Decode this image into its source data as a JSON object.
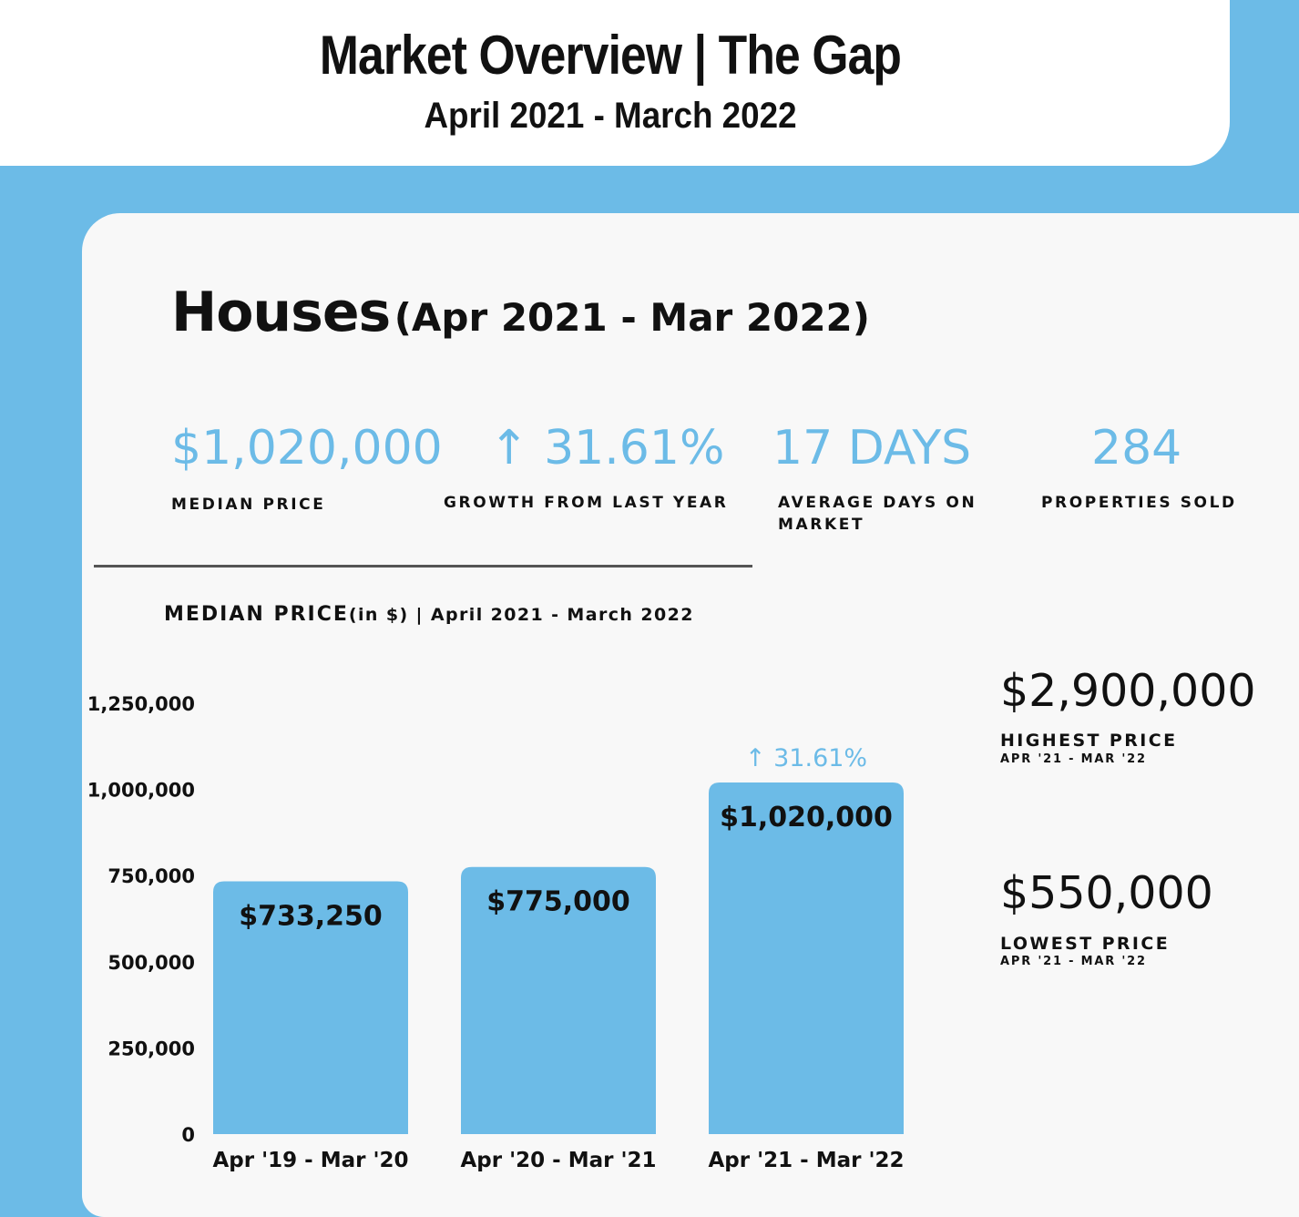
{
  "header": {
    "title": "Market Overview | The Gap",
    "subtitle": "April 2021 - March 2022"
  },
  "section": {
    "title": "Houses",
    "range": "(Apr 2021 - Mar 2022)"
  },
  "stats": [
    {
      "value": "$1,020,000",
      "label": "MEDIAN PRICE"
    },
    {
      "value": "↑ 31.61%",
      "label": "GROWTH FROM LAST YEAR"
    },
    {
      "value": "17 DAYS",
      "label": "AVERAGE DAYS ON MARKET"
    },
    {
      "value": "284",
      "label": "PROPERTIES SOLD"
    }
  ],
  "chart_title": {
    "main": "MEDIAN PRICE",
    "unit": "(in $)",
    "range": " | April 2021 - March 2022"
  },
  "side": {
    "highest_value": "$2,900,000",
    "highest_label": "HIGHEST PRICE",
    "highest_sub": "APR '21 - MAR '22",
    "lowest_value": "$550,000",
    "lowest_label": "LOWEST PRICE",
    "lowest_sub": "APR '21 - MAR '22"
  },
  "colors": {
    "accent": "#6cbbe7",
    "bar": "#6cbbe7",
    "text": "#111111",
    "panel": "#f8f8f8"
  },
  "chart_data": {
    "type": "bar",
    "title": "MEDIAN PRICE (in $) | April 2021 - March 2022",
    "xlabel": "",
    "ylabel": "",
    "categories": [
      "Apr '19 - Mar '20",
      "Apr '20 - Mar '21",
      "Apr '21 - Mar '22"
    ],
    "values": [
      733250,
      775000,
      1020000
    ],
    "value_labels": [
      "$733,250",
      "$775,000",
      "$1,020,000"
    ],
    "annotations": [
      {
        "category": "Apr '21 - Mar '22",
        "text": "↑ 31.61%"
      }
    ],
    "yticks": [
      0,
      250000,
      500000,
      750000,
      1000000,
      1250000
    ],
    "ytick_labels": [
      "0",
      "250,000",
      "500,000",
      "750,000",
      "1,000,000",
      "1,250,000"
    ],
    "ylim": [
      0,
      1250000
    ],
    "grid": false,
    "legend": "none"
  }
}
